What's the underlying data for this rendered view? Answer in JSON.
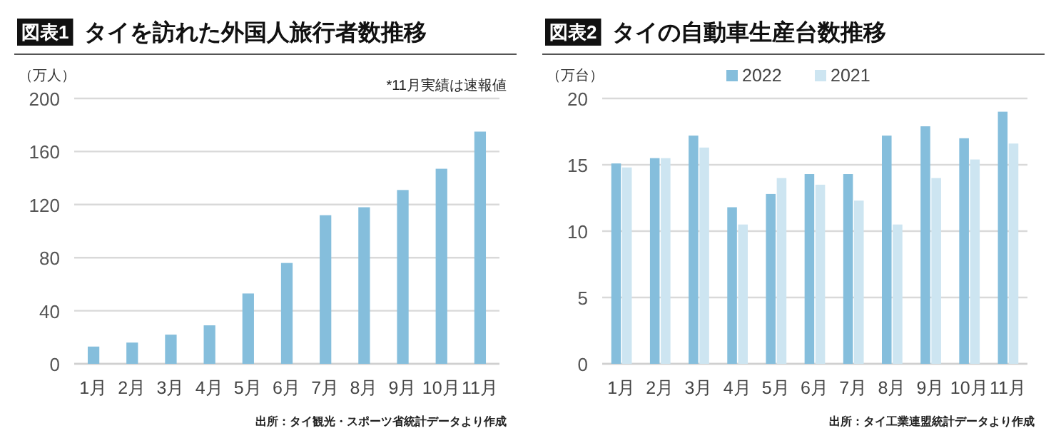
{
  "chart_data": [
    {
      "type": "bar",
      "title": "タイを訪れた外国人旅行者数推移",
      "ylabel": "（万人）",
      "annotations": [
        "図表1",
        "*11月実績は速報値",
        "出所：タイ観光・スポーツ省統計データより作成"
      ],
      "categories": [
        "1月",
        "2月",
        "3月",
        "4月",
        "5月",
        "6月",
        "7月",
        "8月",
        "9月",
        "10月",
        "11月"
      ],
      "values": [
        13,
        16,
        22,
        29,
        53,
        76,
        112,
        118,
        131,
        147,
        175
      ],
      "color": "#85bedc",
      "ylim": [
        0,
        200
      ],
      "yticks": [
        0,
        40,
        80,
        120,
        160,
        200
      ],
      "grid": "y"
    },
    {
      "type": "bar",
      "title": "タイの自動車生産台数推移",
      "ylabel": "（万台）",
      "annotations": [
        "図表2",
        "出所：タイ工業連盟統計データより作成"
      ],
      "categories": [
        "1月",
        "2月",
        "3月",
        "4月",
        "5月",
        "6月",
        "7月",
        "8月",
        "9月",
        "10月",
        "11月"
      ],
      "series": [
        {
          "name": "2022",
          "color": "#85bedc",
          "values": [
            15.1,
            15.5,
            17.2,
            11.8,
            12.8,
            14.3,
            14.3,
            17.2,
            17.9,
            17.0,
            19.0
          ]
        },
        {
          "name": "2021",
          "color": "#cde5f1",
          "values": [
            14.8,
            15.5,
            16.3,
            10.5,
            14.0,
            13.5,
            12.3,
            10.5,
            14.0,
            15.4,
            16.6
          ]
        }
      ],
      "ylim": [
        0,
        20
      ],
      "yticks": [
        0,
        5,
        10,
        15,
        20
      ],
      "grid": "y",
      "legend": "top"
    }
  ]
}
